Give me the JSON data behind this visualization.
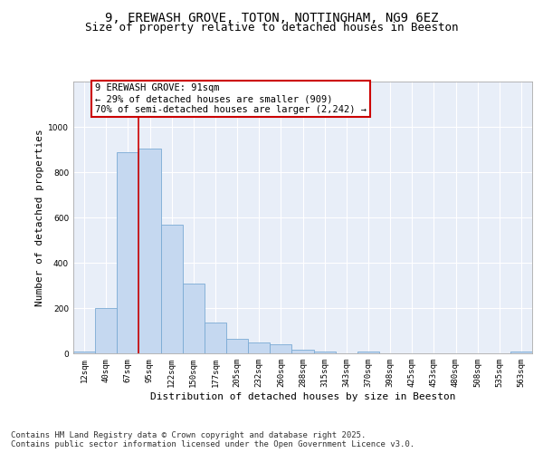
{
  "title": "9, EREWASH GROVE, TOTON, NOTTINGHAM, NG9 6EZ",
  "subtitle": "Size of property relative to detached houses in Beeston",
  "xlabel": "Distribution of detached houses by size in Beeston",
  "ylabel": "Number of detached properties",
  "categories": [
    "12sqm",
    "40sqm",
    "67sqm",
    "95sqm",
    "122sqm",
    "150sqm",
    "177sqm",
    "205sqm",
    "232sqm",
    "260sqm",
    "288sqm",
    "315sqm",
    "343sqm",
    "370sqm",
    "398sqm",
    "425sqm",
    "453sqm",
    "480sqm",
    "508sqm",
    "535sqm",
    "563sqm"
  ],
  "bar_heights": [
    10,
    200,
    890,
    905,
    570,
    310,
    135,
    65,
    47,
    40,
    15,
    10,
    2,
    10,
    0,
    2,
    0,
    0,
    2,
    0,
    10
  ],
  "bar_color": "#c5d8f0",
  "bar_edge_color": "#7aaad4",
  "vline_color": "#cc0000",
  "annotation_line1": "9 EREWASH GROVE: 91sqm",
  "annotation_line2": "← 29% of detached houses are smaller (909)",
  "annotation_line3": "70% of semi-detached houses are larger (2,242) →",
  "annotation_box_facecolor": "#ffffff",
  "annotation_box_edgecolor": "#cc0000",
  "ylim": [
    0,
    1200
  ],
  "yticks": [
    0,
    200,
    400,
    600,
    800,
    1000
  ],
  "grid_color": "#d8e4f0",
  "bg_color": "#e8eef8",
  "footer": "Contains HM Land Registry data © Crown copyright and database right 2025.\nContains public sector information licensed under the Open Government Licence v3.0.",
  "title_fontsize": 10,
  "subtitle_fontsize": 9,
  "label_fontsize": 8,
  "tick_fontsize": 6.5,
  "annotation_fontsize": 7.5,
  "footer_fontsize": 6.5
}
